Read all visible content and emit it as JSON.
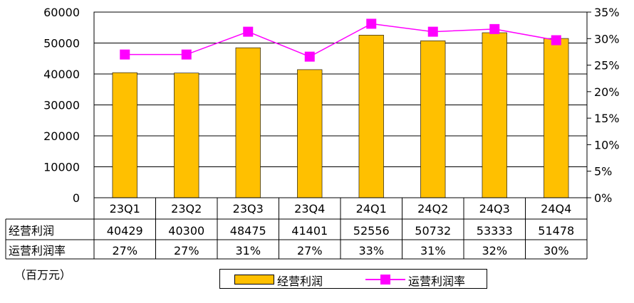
{
  "colors": {
    "bar": "#FFC000",
    "line": "#FF00FF",
    "grid": "#000000",
    "axis": "#000000"
  },
  "unit_label": "（百万元）",
  "legend": {
    "bar_label": "经营利润",
    "line_label": "运营利润率"
  },
  "table": {
    "row1_header": "经营利润",
    "row2_header": "运营利润率",
    "row1_values": [
      "40429",
      "40300",
      "48475",
      "41401",
      "52556",
      "50732",
      "53333",
      "51478"
    ],
    "row2_values": [
      "27%",
      "27%",
      "31%",
      "27%",
      "33%",
      "31%",
      "32%",
      "30%"
    ]
  },
  "chart_data": {
    "type": "bar",
    "categories": [
      "23Q1",
      "23Q2",
      "23Q3",
      "23Q4",
      "24Q1",
      "24Q2",
      "24Q3",
      "24Q4"
    ],
    "series": [
      {
        "name": "经营利润",
        "type": "bar",
        "axis": "left",
        "values": [
          40429,
          40300,
          48475,
          41401,
          52556,
          50732,
          53333,
          51478
        ]
      },
      {
        "name": "运营利润率",
        "type": "line",
        "axis": "right",
        "values": [
          27,
          27,
          31.3,
          26.6,
          32.8,
          31.3,
          31.8,
          29.7
        ]
      }
    ],
    "ylim": [
      0,
      60000
    ],
    "yticks": [
      "0",
      "10000",
      "20000",
      "30000",
      "40000",
      "50000",
      "60000"
    ],
    "y2lim": [
      0,
      35
    ],
    "y2ticks": [
      "0%",
      "5%",
      "10%",
      "15%",
      "20%",
      "25%",
      "30%",
      "35%"
    ],
    "grid": true,
    "legend_position": "bottom"
  }
}
